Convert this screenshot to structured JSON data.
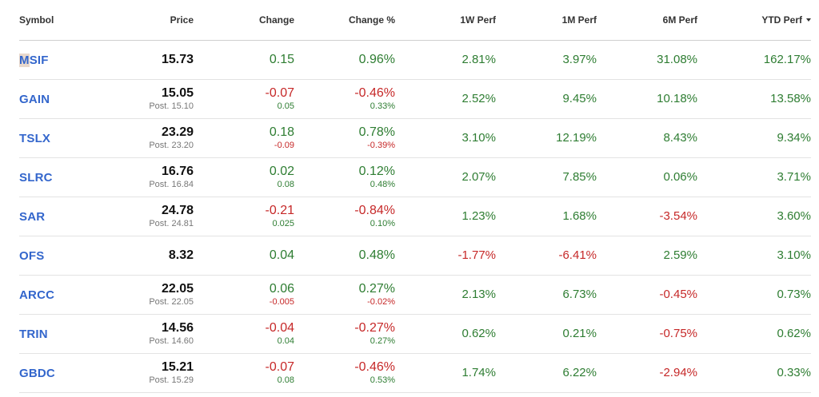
{
  "headers": {
    "symbol": "Symbol",
    "price": "Price",
    "change": "Change",
    "change_pct": "Change %",
    "w1": "1W Perf",
    "m1": "1M Perf",
    "m6": "6M Perf",
    "ytd": "YTD Perf"
  },
  "sort": {
    "column": "YTD Perf",
    "direction": "descending",
    "icon": "sort-down-icon"
  },
  "colors": {
    "positive": "#2e7d32",
    "negative": "#c62828",
    "link": "#3366cc"
  },
  "rows": [
    {
      "symbol": "MSIF",
      "price": "15.73",
      "post": "",
      "change": "0.15",
      "change_dir": "pos",
      "post_change": "",
      "post_change_dir": "",
      "change_pct": "0.96%",
      "change_pct_dir": "pos",
      "post_change_pct": "",
      "post_change_pct_dir": "",
      "w1": "2.81%",
      "w1_dir": "pos",
      "m1": "3.97%",
      "m1_dir": "pos",
      "m6": "31.08%",
      "m6_dir": "pos",
      "ytd": "162.17%",
      "ytd_dir": "pos"
    },
    {
      "symbol": "GAIN",
      "price": "15.05",
      "post": "Post. 15.10",
      "change": "-0.07",
      "change_dir": "neg",
      "post_change": "0.05",
      "post_change_dir": "pos",
      "change_pct": "-0.46%",
      "change_pct_dir": "neg",
      "post_change_pct": "0.33%",
      "post_change_pct_dir": "pos",
      "w1": "2.52%",
      "w1_dir": "pos",
      "m1": "9.45%",
      "m1_dir": "pos",
      "m6": "10.18%",
      "m6_dir": "pos",
      "ytd": "13.58%",
      "ytd_dir": "pos"
    },
    {
      "symbol": "TSLX",
      "price": "23.29",
      "post": "Post. 23.20",
      "change": "0.18",
      "change_dir": "pos",
      "post_change": "-0.09",
      "post_change_dir": "neg",
      "change_pct": "0.78%",
      "change_pct_dir": "pos",
      "post_change_pct": "-0.39%",
      "post_change_pct_dir": "neg",
      "w1": "3.10%",
      "w1_dir": "pos",
      "m1": "12.19%",
      "m1_dir": "pos",
      "m6": "8.43%",
      "m6_dir": "pos",
      "ytd": "9.34%",
      "ytd_dir": "pos"
    },
    {
      "symbol": "SLRC",
      "price": "16.76",
      "post": "Post. 16.84",
      "change": "0.02",
      "change_dir": "pos",
      "post_change": "0.08",
      "post_change_dir": "pos",
      "change_pct": "0.12%",
      "change_pct_dir": "pos",
      "post_change_pct": "0.48%",
      "post_change_pct_dir": "pos",
      "w1": "2.07%",
      "w1_dir": "pos",
      "m1": "7.85%",
      "m1_dir": "pos",
      "m6": "0.06%",
      "m6_dir": "pos",
      "ytd": "3.71%",
      "ytd_dir": "pos"
    },
    {
      "symbol": "SAR",
      "price": "24.78",
      "post": "Post. 24.81",
      "change": "-0.21",
      "change_dir": "neg",
      "post_change": "0.025",
      "post_change_dir": "pos",
      "change_pct": "-0.84%",
      "change_pct_dir": "neg",
      "post_change_pct": "0.10%",
      "post_change_pct_dir": "pos",
      "w1": "1.23%",
      "w1_dir": "pos",
      "m1": "1.68%",
      "m1_dir": "pos",
      "m6": "-3.54%",
      "m6_dir": "neg",
      "ytd": "3.60%",
      "ytd_dir": "pos"
    },
    {
      "symbol": "OFS",
      "price": "8.32",
      "post": "",
      "change": "0.04",
      "change_dir": "pos",
      "post_change": "",
      "post_change_dir": "",
      "change_pct": "0.48%",
      "change_pct_dir": "pos",
      "post_change_pct": "",
      "post_change_pct_dir": "",
      "w1": "-1.77%",
      "w1_dir": "neg",
      "m1": "-6.41%",
      "m1_dir": "neg",
      "m6": "2.59%",
      "m6_dir": "pos",
      "ytd": "3.10%",
      "ytd_dir": "pos"
    },
    {
      "symbol": "ARCC",
      "price": "22.05",
      "post": "Post. 22.05",
      "change": "0.06",
      "change_dir": "pos",
      "post_change": "-0.005",
      "post_change_dir": "neg",
      "change_pct": "0.27%",
      "change_pct_dir": "pos",
      "post_change_pct": "-0.02%",
      "post_change_pct_dir": "neg",
      "w1": "2.13%",
      "w1_dir": "pos",
      "m1": "6.73%",
      "m1_dir": "pos",
      "m6": "-0.45%",
      "m6_dir": "neg",
      "ytd": "0.73%",
      "ytd_dir": "pos"
    },
    {
      "symbol": "TRIN",
      "price": "14.56",
      "post": "Post. 14.60",
      "change": "-0.04",
      "change_dir": "neg",
      "post_change": "0.04",
      "post_change_dir": "pos",
      "change_pct": "-0.27%",
      "change_pct_dir": "neg",
      "post_change_pct": "0.27%",
      "post_change_pct_dir": "pos",
      "w1": "0.62%",
      "w1_dir": "pos",
      "m1": "0.21%",
      "m1_dir": "pos",
      "m6": "-0.75%",
      "m6_dir": "neg",
      "ytd": "0.62%",
      "ytd_dir": "pos"
    },
    {
      "symbol": "GBDC",
      "price": "15.21",
      "post": "Post. 15.29",
      "change": "-0.07",
      "change_dir": "neg",
      "post_change": "0.08",
      "post_change_dir": "pos",
      "change_pct": "-0.46%",
      "change_pct_dir": "neg",
      "post_change_pct": "0.53%",
      "post_change_pct_dir": "pos",
      "w1": "1.74%",
      "w1_dir": "pos",
      "m1": "6.22%",
      "m1_dir": "pos",
      "m6": "-2.94%",
      "m6_dir": "neg",
      "ytd": "0.33%",
      "ytd_dir": "pos"
    }
  ]
}
